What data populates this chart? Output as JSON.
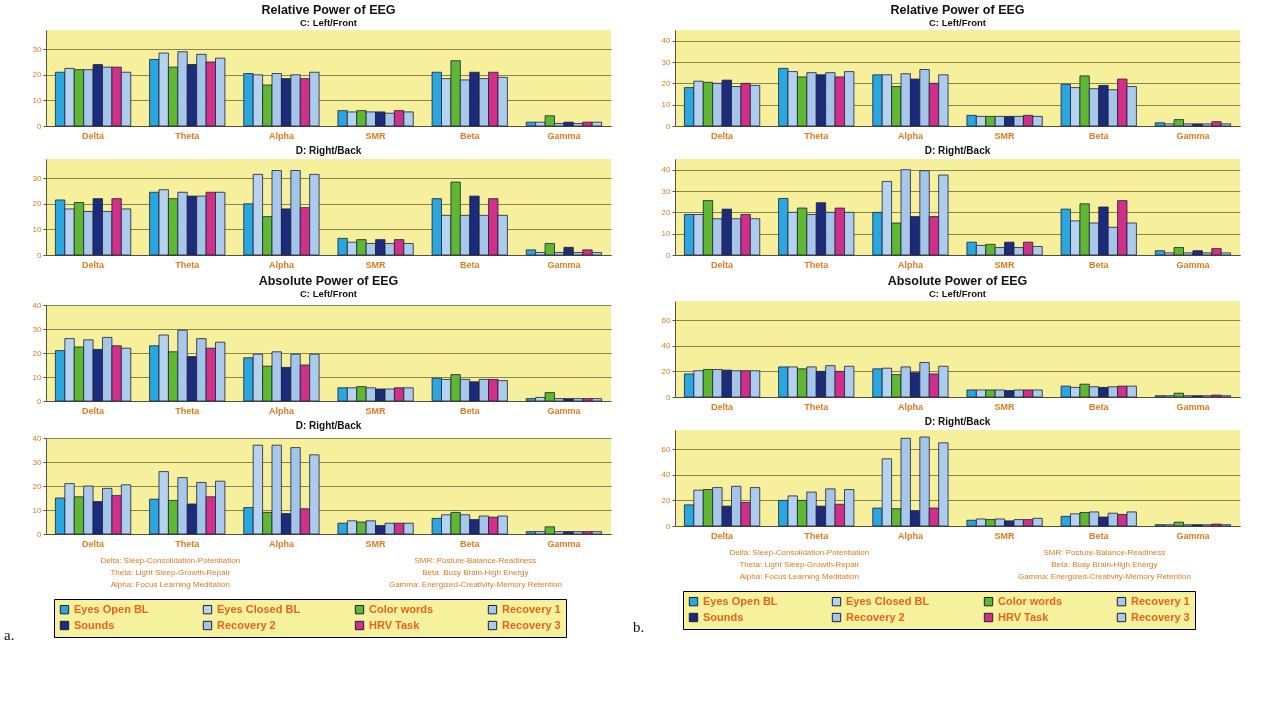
{
  "chart_data": [
    {
      "type": "bar",
      "title": "Relative Power of EEG",
      "subtitle": "C: Left/Front",
      "categories": [
        "Delta",
        "Theta",
        "Alpha",
        "SMR",
        "Beta",
        "Gamma"
      ],
      "ylim": [
        0,
        37.5
      ],
      "yticks": [
        0,
        10,
        20,
        30
      ],
      "grid": "y",
      "series": [
        {
          "color": "#2aa7df",
          "values": [
            21,
            26,
            20.5,
            6,
            21,
            1.5
          ]
        },
        {
          "color": "#b5d2ee",
          "values": [
            22.5,
            28.5,
            20,
            5.5,
            18.5,
            1.5
          ]
        },
        {
          "color": "#5fb832",
          "values": [
            22,
            23,
            16,
            6,
            25.5,
            4
          ]
        },
        {
          "color": "#a7c8eb",
          "values": [
            22,
            29,
            20.5,
            5.5,
            18,
            1
          ]
        },
        {
          "color": "#1c2b7a",
          "values": [
            24,
            24,
            18.5,
            5.5,
            21,
            1.5
          ]
        },
        {
          "color": "#a2c5e9",
          "values": [
            23,
            28,
            20,
            5,
            18.5,
            1
          ]
        },
        {
          "color": "#cf3189",
          "values": [
            23,
            25,
            18.5,
            6,
            21,
            1.5
          ]
        },
        {
          "color": "#accced",
          "values": [
            21,
            26.5,
            21,
            5.5,
            19,
            1.5
          ]
        }
      ]
    },
    {
      "type": "bar",
      "title": "D: Right/Back",
      "categories": [
        "Delta",
        "Theta",
        "Alpha",
        "SMR",
        "Beta",
        "Gamma"
      ],
      "ylim": [
        0,
        37.5
      ],
      "yticks": [
        0,
        10,
        20,
        30
      ],
      "grid": "y",
      "series": [
        {
          "color": "#2aa7df",
          "values": [
            21.5,
            24.5,
            20,
            6.5,
            22,
            2
          ]
        },
        {
          "color": "#b5d2ee",
          "values": [
            18,
            25.5,
            31.5,
            5,
            15.5,
            1
          ]
        },
        {
          "color": "#5fb832",
          "values": [
            20.5,
            22,
            15,
            6,
            28.5,
            4.5
          ]
        },
        {
          "color": "#a7c8eb",
          "values": [
            17,
            24.5,
            33,
            4.5,
            15.5,
            1
          ]
        },
        {
          "color": "#1c2b7a",
          "values": [
            22,
            23,
            18,
            6,
            23,
            3
          ]
        },
        {
          "color": "#a2c5e9",
          "values": [
            17,
            23,
            33,
            4.5,
            15.5,
            1
          ]
        },
        {
          "color": "#cf3189",
          "values": [
            22,
            24.5,
            18.5,
            6,
            22,
            2
          ]
        },
        {
          "color": "#accced",
          "values": [
            18,
            24.5,
            31.5,
            4.5,
            15.5,
            1
          ]
        }
      ]
    },
    {
      "type": "bar",
      "title": "Absolute Power of EEG",
      "subtitle": "C: Left/Front",
      "categories": [
        "Delta",
        "Theta",
        "Alpha",
        "SMR",
        "Beta",
        "Gamma"
      ],
      "ylim": [
        0,
        40
      ],
      "yticks": [
        0,
        10,
        20,
        30,
        40
      ],
      "grid": "y",
      "series": [
        {
          "color": "#2aa7df",
          "values": [
            21,
            23,
            18,
            5.5,
            9.5,
            1
          ]
        },
        {
          "color": "#b5d2ee",
          "values": [
            26,
            27.5,
            19.5,
            5.5,
            9,
            1.5
          ]
        },
        {
          "color": "#5fb832",
          "values": [
            22.5,
            20.5,
            14.5,
            6,
            11,
            3.5
          ]
        },
        {
          "color": "#a7c8eb",
          "values": [
            25.5,
            29.5,
            20.5,
            5.5,
            9,
            1
          ]
        },
        {
          "color": "#1c2b7a",
          "values": [
            21.5,
            18.5,
            14,
            5,
            8,
            1
          ]
        },
        {
          "color": "#a2c5e9",
          "values": [
            26.5,
            26,
            19.5,
            5,
            9,
            1
          ]
        },
        {
          "color": "#cf3189",
          "values": [
            23,
            22,
            15,
            5.5,
            9,
            1
          ]
        },
        {
          "color": "#accced",
          "values": [
            22,
            24.5,
            19.5,
            5.5,
            8.5,
            1
          ]
        }
      ]
    },
    {
      "type": "bar",
      "title": "D: Right/Back",
      "categories": [
        "Delta",
        "Theta",
        "Alpha",
        "SMR",
        "Beta",
        "Gamma"
      ],
      "ylim": [
        0,
        40
      ],
      "yticks": [
        0,
        10,
        20,
        30,
        40
      ],
      "grid": "y",
      "legend": "bottom",
      "annotations": [
        "Delta: Sleep-Consolidation-Potentiation",
        "Theta: Light Sleep-Growth-Repair",
        "Alpha: Focus Learning Meditation",
        "SMR: Posture-Balance-Readiness",
        "Beta: Busy Brain-High Energy",
        "Gamma: Energized-Creativity-Memory Retention",
        "a."
      ],
      "series": [
        {
          "name": "Eyes Open BL",
          "color": "#2aa7df",
          "values": [
            15,
            14.5,
            11,
            4.5,
            6.5,
            1
          ]
        },
        {
          "name": "Eyes Closed BL",
          "color": "#b5d2ee",
          "values": [
            21,
            26,
            37,
            5.5,
            8,
            1
          ]
        },
        {
          "name": "Color words",
          "color": "#5fb832",
          "values": [
            15.5,
            14,
            9,
            5,
            9,
            3
          ]
        },
        {
          "name": "Recovery 1",
          "color": "#a7c8eb",
          "values": [
            20,
            23.5,
            37,
            5.5,
            8,
            1
          ]
        },
        {
          "name": "Sounds",
          "color": "#1c2b7a",
          "values": [
            13.5,
            12.5,
            8.5,
            3.5,
            6,
            1
          ]
        },
        {
          "name": "Recovery 2",
          "color": "#a2c5e9",
          "values": [
            19,
            21.5,
            36,
            4.5,
            7.5,
            1
          ]
        },
        {
          "name": "HRV Task",
          "color": "#cf3189",
          "values": [
            16,
            15.5,
            10.5,
            4.5,
            7,
            1
          ]
        },
        {
          "name": "Recovery 3",
          "color": "#accced",
          "values": [
            20.5,
            22,
            33,
            4.5,
            7.5,
            1
          ]
        }
      ]
    },
    {
      "type": "bar",
      "title": "Relative Power of EEG",
      "subtitle": "C: Left/Front",
      "categories": [
        "Delta",
        "Theta",
        "Alpha",
        "SMR",
        "Beta",
        "Gamma"
      ],
      "ylim": [
        0,
        45
      ],
      "yticks": [
        0,
        10,
        20,
        30,
        40
      ],
      "grid": "y",
      "series": [
        {
          "color": "#2aa7df",
          "values": [
            18,
            27,
            24,
            5,
            19.5,
            1.5
          ]
        },
        {
          "color": "#b5d2ee",
          "values": [
            21,
            25.5,
            24,
            4.5,
            18,
            1
          ]
        },
        {
          "color": "#5fb832",
          "values": [
            20.5,
            23,
            18.5,
            4.5,
            23.5,
            3
          ]
        },
        {
          "color": "#a7c8eb",
          "values": [
            20,
            25,
            24.5,
            4.5,
            17.5,
            1
          ]
        },
        {
          "color": "#1c2b7a",
          "values": [
            21.5,
            24,
            22,
            4.5,
            19,
            1
          ]
        },
        {
          "color": "#a2c5e9",
          "values": [
            18.5,
            25,
            26.5,
            4.5,
            17,
            1
          ]
        },
        {
          "color": "#cf3189",
          "values": [
            20,
            23,
            20,
            5,
            22,
            2
          ]
        },
        {
          "color": "#accced",
          "values": [
            19,
            25.5,
            24,
            4.5,
            18.5,
            1
          ]
        }
      ]
    },
    {
      "type": "bar",
      "title": "D: Right/Back",
      "categories": [
        "Delta",
        "Theta",
        "Alpha",
        "SMR",
        "Beta",
        "Gamma"
      ],
      "ylim": [
        0,
        45
      ],
      "yticks": [
        0,
        10,
        20,
        30,
        40
      ],
      "grid": "y",
      "series": [
        {
          "color": "#2aa7df",
          "values": [
            19,
            26.5,
            20,
            6,
            21.5,
            2
          ]
        },
        {
          "color": "#b5d2ee",
          "values": [
            19,
            20,
            34.5,
            4.5,
            16,
            1
          ]
        },
        {
          "color": "#5fb832",
          "values": [
            25.5,
            22,
            15,
            5,
            24,
            3.5
          ]
        },
        {
          "color": "#a7c8eb",
          "values": [
            17,
            19,
            40,
            3.5,
            15,
            1
          ]
        },
        {
          "color": "#1c2b7a",
          "values": [
            21.5,
            24.5,
            18,
            6,
            22.5,
            2
          ]
        },
        {
          "color": "#a2c5e9",
          "values": [
            17,
            20,
            39.5,
            3.5,
            13,
            1
          ]
        },
        {
          "color": "#cf3189",
          "values": [
            19,
            22,
            18,
            6,
            25.5,
            3
          ]
        },
        {
          "color": "#accced",
          "values": [
            17,
            20,
            37.5,
            4,
            15,
            1
          ]
        }
      ]
    },
    {
      "type": "bar",
      "title": "Absolute Power of EEG",
      "subtitle": "C: Left/Front",
      "categories": [
        "Delta",
        "Theta",
        "Alpha",
        "SMR",
        "Beta",
        "Gamma"
      ],
      "ylim": [
        0,
        75
      ],
      "yticks": [
        0,
        20,
        40,
        60
      ],
      "grid": "y",
      "series": [
        {
          "color": "#2aa7df",
          "values": [
            18,
            23.5,
            22,
            5.5,
            8.5,
            1
          ]
        },
        {
          "color": "#b5d2ee",
          "values": [
            20.5,
            23.5,
            22.5,
            5.5,
            7.5,
            1
          ]
        },
        {
          "color": "#5fb832",
          "values": [
            21.5,
            22,
            17.5,
            5.5,
            10,
            3
          ]
        },
        {
          "color": "#a7c8eb",
          "values": [
            21.5,
            23.5,
            23.5,
            5.5,
            8,
            1
          ]
        },
        {
          "color": "#1c2b7a",
          "values": [
            21,
            20,
            19,
            5,
            7.5,
            1
          ]
        },
        {
          "color": "#a2c5e9",
          "values": [
            20.5,
            24.5,
            27,
            5.5,
            8,
            1
          ]
        },
        {
          "color": "#cf3189",
          "values": [
            20.5,
            20,
            18,
            5.5,
            8.5,
            1.5
          ]
        },
        {
          "color": "#accced",
          "values": [
            20.5,
            24,
            24,
            5.5,
            8.5,
            1
          ]
        }
      ]
    },
    {
      "type": "bar",
      "title": "D: Right/Back",
      "categories": [
        "Delta",
        "Theta",
        "Alpha",
        "SMR",
        "Beta",
        "Gamma"
      ],
      "ylim": [
        0,
        75
      ],
      "yticks": [
        0,
        20,
        40,
        60
      ],
      "grid": "y",
      "legend": "bottom",
      "annotations": [
        "Delta: Sleep-Consolidation-Potentiation",
        "Theta: Light Sleep-Growth-Repair",
        "Alpha: Focus Learning Meditation",
        "SMR: Posture-Balance-Readiness",
        "Beta: Busy Brain-High Energy",
        "Gamma: Energized-Creativity-Memory Retention",
        "b."
      ],
      "series": [
        {
          "name": "Eyes Open BL",
          "color": "#2aa7df",
          "values": [
            16.5,
            20,
            14,
            4.5,
            7.5,
            1
          ]
        },
        {
          "name": "Eyes Closed BL",
          "color": "#b5d2ee",
          "values": [
            28,
            23.5,
            52.5,
            5.5,
            9.5,
            1
          ]
        },
        {
          "name": "Color words",
          "color": "#5fb832",
          "values": [
            28.5,
            20,
            13.5,
            5,
            10.5,
            3
          ]
        },
        {
          "name": "Recovery 1",
          "color": "#a7c8eb",
          "values": [
            30,
            26.5,
            68.5,
            5.5,
            11,
            1
          ]
        },
        {
          "name": "Sounds",
          "color": "#1c2b7a",
          "values": [
            15.5,
            15.5,
            12,
            4,
            7,
            1
          ]
        },
        {
          "name": "Recovery 2",
          "color": "#a2c5e9",
          "values": [
            31,
            29,
            69.5,
            5,
            10,
            1
          ]
        },
        {
          "name": "HRV Task",
          "color": "#cf3189",
          "values": [
            18.5,
            17,
            14,
            5,
            9,
            1.5
          ]
        },
        {
          "name": "Recovery 3",
          "color": "#accced",
          "values": [
            30,
            28.5,
            65,
            6,
            11,
            1
          ]
        }
      ]
    }
  ]
}
